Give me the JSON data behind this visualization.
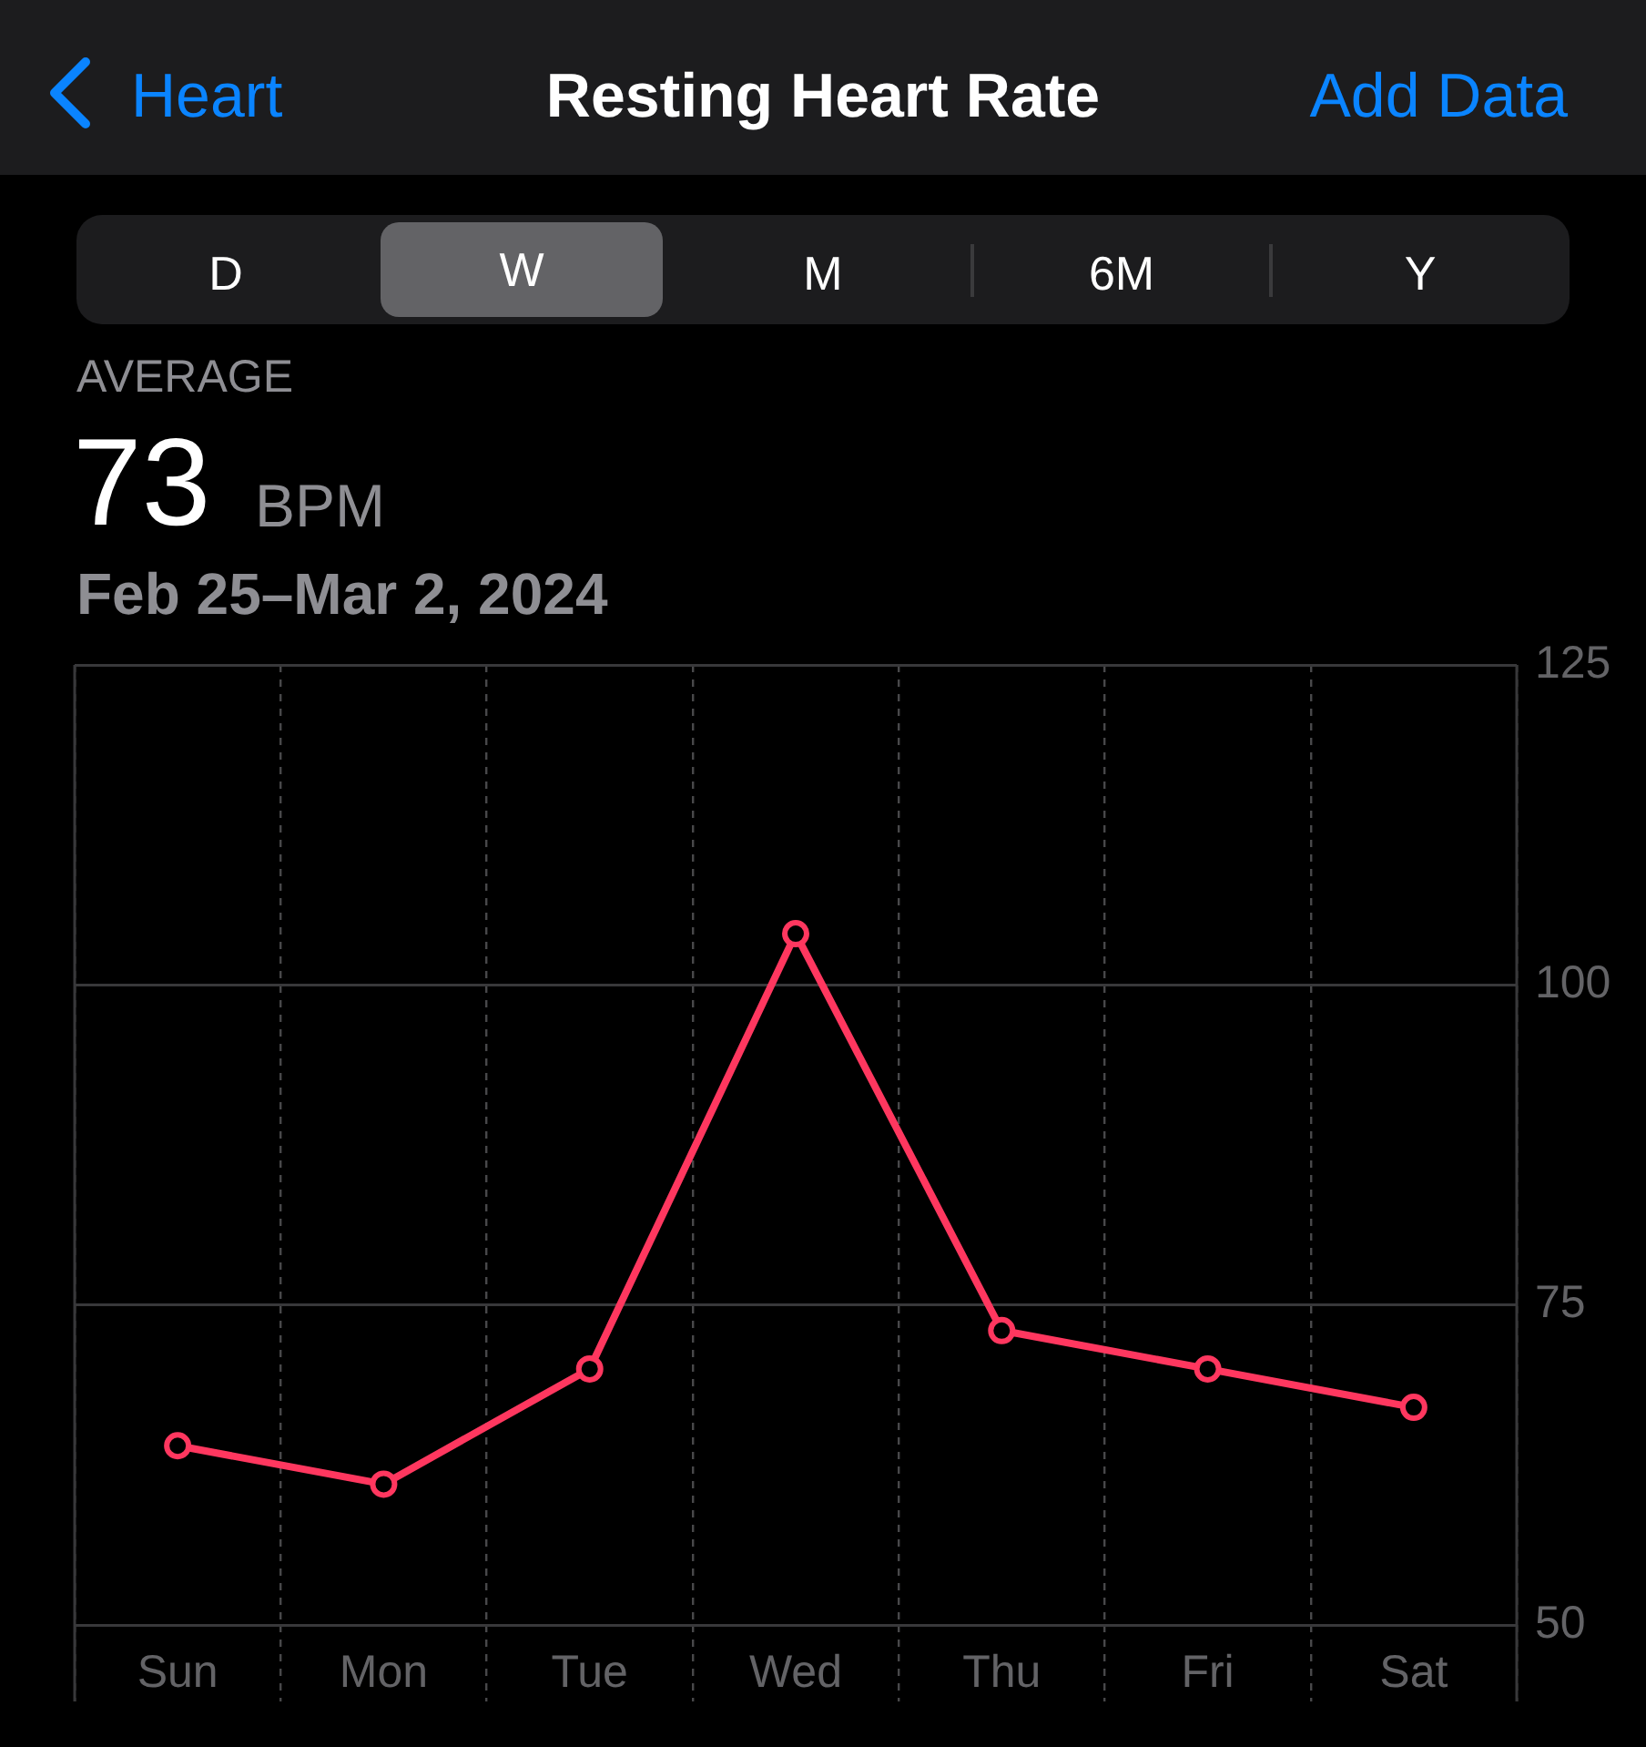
{
  "chart_data": {
    "type": "line",
    "title": "Resting Heart Rate",
    "subtitle": "Feb 25–Mar 2, 2024",
    "annotations": [
      "Heart",
      "Add Data",
      "D",
      "W",
      "M",
      "6M",
      "Y",
      "AVERAGE",
      "73",
      "BPM"
    ],
    "categories": [
      "Sun",
      "Mon",
      "Tue",
      "Wed",
      "Thu",
      "Fri",
      "Sat"
    ],
    "ylim": [
      50,
      125
    ],
    "yticks": [
      50,
      75,
      100,
      125
    ],
    "grid": true,
    "marker": "circle",
    "series": [
      {
        "color": "#ff375f",
        "values": [
          64,
          61,
          70,
          104,
          73,
          70,
          67
        ]
      }
    ]
  }
}
